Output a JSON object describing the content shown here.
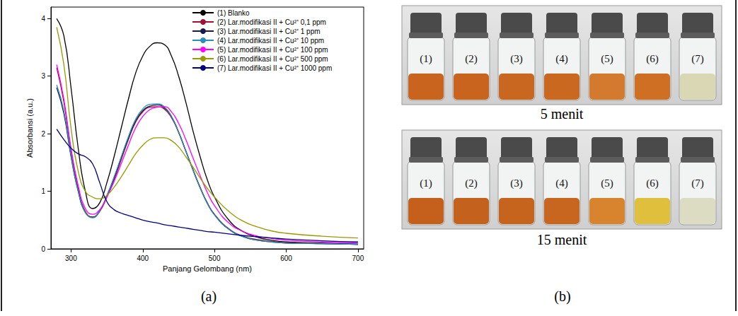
{
  "chart_data": {
    "type": "line",
    "x_label": "Panjang Gelombang (nm)",
    "y_label": "Absorbansi (a.u.)",
    "xlim": [
      272,
      708
    ],
    "xticks": [
      300,
      400,
      500,
      600,
      700
    ],
    "ylim": [
      0,
      4.2
    ],
    "yticks": [
      0,
      1,
      2,
      3,
      4
    ],
    "grid": false,
    "legend": "upper right",
    "x": [
      280,
      290,
      300,
      310,
      320,
      330,
      340,
      350,
      360,
      370,
      380,
      390,
      400,
      410,
      420,
      430,
      440,
      450,
      460,
      470,
      480,
      490,
      500,
      520,
      540,
      560,
      580,
      600,
      650,
      700
    ],
    "series": [
      {
        "name": "(1) Blanko",
        "color": "#000000",
        "values": [
          4.0,
          3.7,
          2.8,
          1.75,
          1.0,
          0.7,
          0.8,
          1.15,
          1.6,
          2.1,
          2.6,
          3.05,
          3.35,
          3.52,
          3.58,
          3.55,
          3.35,
          3.0,
          2.55,
          2.05,
          1.6,
          1.2,
          0.9,
          0.5,
          0.3,
          0.2,
          0.15,
          0.12,
          0.1,
          0.08
        ]
      },
      {
        "name": "(2) Lar.modifikasi II + Cu²⁺ 0,1 ppm",
        "color": "#a0103a",
        "values": [
          3.15,
          2.55,
          1.7,
          1.05,
          0.65,
          0.55,
          0.65,
          0.9,
          1.2,
          1.55,
          1.9,
          2.2,
          2.38,
          2.46,
          2.47,
          2.43,
          2.28,
          2.02,
          1.7,
          1.38,
          1.07,
          0.8,
          0.6,
          0.35,
          0.22,
          0.16,
          0.13,
          0.11,
          0.09,
          0.08
        ]
      },
      {
        "name": "(3) Lar.modifikasi II + Cu²⁺ 1 ppm",
        "color": "#1a1a4a",
        "values": [
          2.8,
          2.35,
          1.6,
          1.0,
          0.63,
          0.55,
          0.66,
          0.92,
          1.23,
          1.58,
          1.92,
          2.22,
          2.4,
          2.48,
          2.5,
          2.45,
          2.3,
          2.03,
          1.7,
          1.37,
          1.06,
          0.79,
          0.59,
          0.34,
          0.21,
          0.15,
          0.12,
          0.1,
          0.09,
          0.08
        ]
      },
      {
        "name": "(4) Lar.modifikasi II + Cu²⁺ 10 ppm",
        "color": "#2a8fb8",
        "values": [
          2.85,
          2.4,
          1.62,
          1.0,
          0.63,
          0.54,
          0.66,
          0.93,
          1.25,
          1.6,
          1.95,
          2.25,
          2.43,
          2.51,
          2.52,
          2.47,
          2.3,
          2.03,
          1.7,
          1.37,
          1.06,
          0.79,
          0.59,
          0.34,
          0.21,
          0.15,
          0.12,
          0.1,
          0.09,
          0.08
        ]
      },
      {
        "name": "(5) Lar.modifikasi II + Cu²⁺ 100 ppm",
        "color": "#ff00ff",
        "values": [
          3.2,
          2.6,
          1.75,
          1.1,
          0.7,
          0.6,
          0.68,
          0.9,
          1.17,
          1.48,
          1.8,
          2.1,
          2.3,
          2.42,
          2.46,
          2.47,
          2.38,
          2.18,
          1.9,
          1.58,
          1.27,
          0.98,
          0.75,
          0.45,
          0.3,
          0.22,
          0.18,
          0.15,
          0.12,
          0.1
        ]
      },
      {
        "name": "(6) Lar.modifikasi II + Cu²⁺ 500 ppm",
        "color": "#999900",
        "values": [
          3.85,
          3.2,
          2.1,
          1.35,
          1.0,
          0.9,
          0.87,
          0.93,
          1.07,
          1.25,
          1.45,
          1.65,
          1.8,
          1.9,
          1.93,
          1.93,
          1.88,
          1.77,
          1.6,
          1.42,
          1.23,
          1.05,
          0.9,
          0.65,
          0.48,
          0.38,
          0.31,
          0.27,
          0.22,
          0.19
        ]
      },
      {
        "name": "(7) Lar.modifikasi II + Cu²⁺ 1000 ppm",
        "color": "#000080",
        "values": [
          2.08,
          1.9,
          1.75,
          1.65,
          1.6,
          1.48,
          1.15,
          0.82,
          0.68,
          0.62,
          0.58,
          0.54,
          0.5,
          0.47,
          0.45,
          0.42,
          0.4,
          0.38,
          0.36,
          0.34,
          0.32,
          0.3,
          0.29,
          0.26,
          0.23,
          0.21,
          0.19,
          0.17,
          0.14,
          0.12
        ]
      }
    ]
  },
  "panel_labels": [
    "(a)",
    "(b)"
  ],
  "photos": [
    {
      "caption": "5 menit",
      "vials": [
        {
          "label": "(1)",
          "color": "#c8641e"
        },
        {
          "label": "(2)",
          "color": "#c8641e"
        },
        {
          "label": "(3)",
          "color": "#c9661f"
        },
        {
          "label": "(4)",
          "color": "#ca6820"
        },
        {
          "label": "(5)",
          "color": "#d47a2e"
        },
        {
          "label": "(6)",
          "color": "#cf6f24"
        },
        {
          "label": "(7)",
          "color": "#dad8b4"
        }
      ]
    },
    {
      "caption": "15 menit",
      "vials": [
        {
          "label": "(1)",
          "color": "#c4601c"
        },
        {
          "label": "(2)",
          "color": "#c4621d"
        },
        {
          "label": "(3)",
          "color": "#c6641e"
        },
        {
          "label": "(4)",
          "color": "#c8661f"
        },
        {
          "label": "(5)",
          "color": "#d8842f"
        },
        {
          "label": "(6)",
          "color": "#e0bf3c"
        },
        {
          "label": "(7)",
          "color": "#dcdcc2"
        }
      ]
    }
  ]
}
